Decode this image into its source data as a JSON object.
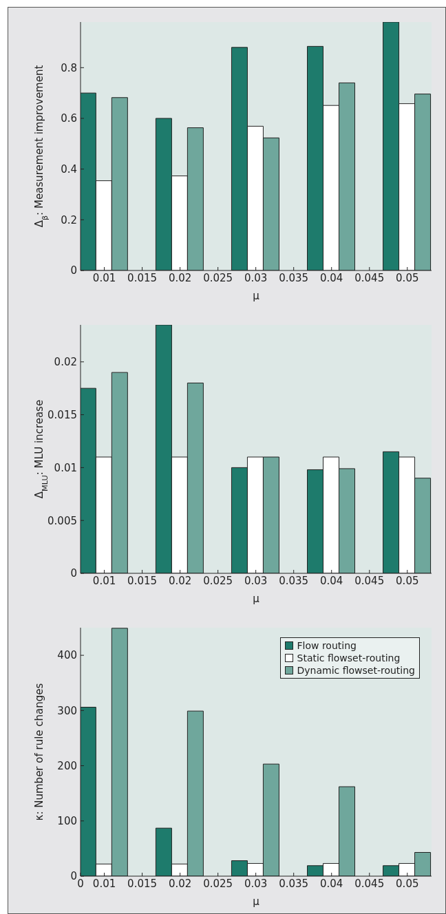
{
  "chart_data": [
    {
      "type": "bar",
      "x": [
        0.01,
        0.02,
        0.03,
        0.04,
        0.05
      ],
      "xlabel": "μ",
      "ylabel": "Δ$_{β}$: Measurement improvement",
      "xlim": [
        0.00686,
        0.0532
      ],
      "ylim": [
        0,
        0.98
      ],
      "xticks": [
        0.01,
        0.015,
        0.02,
        0.025,
        0.03,
        0.035,
        0.04,
        0.045,
        0.05
      ],
      "yticks": [
        0,
        0.2,
        0.4,
        0.6,
        0.8
      ],
      "series": [
        {
          "color": "#1e7b6c",
          "values": [
            0.7,
            0.6,
            0.88,
            0.884,
            0.98
          ]
        },
        {
          "color": "#ffffff",
          "values": [
            0.354,
            0.373,
            0.569,
            0.651,
            0.658
          ]
        },
        {
          "color": "#6fa79c",
          "values": [
            0.682,
            0.563,
            0.523,
            0.74,
            0.696
          ]
        }
      ]
    },
    {
      "type": "bar",
      "x": [
        0.01,
        0.02,
        0.03,
        0.04,
        0.05
      ],
      "xlabel": "μ",
      "ylabel": "Δ$_{MLU}$: MLU increase",
      "xlim": [
        0.00686,
        0.0532
      ],
      "ylim": [
        0,
        0.0235
      ],
      "xticks": [
        0.01,
        0.015,
        0.02,
        0.025,
        0.03,
        0.035,
        0.04,
        0.045,
        0.05
      ],
      "yticks": [
        0,
        0.005,
        0.01,
        0.015,
        0.02
      ],
      "series": [
        {
          "color": "#1e7b6c",
          "values": [
            0.0175,
            0.0235,
            0.01,
            0.0098,
            0.0115
          ]
        },
        {
          "color": "#ffffff",
          "values": [
            0.011,
            0.011,
            0.011,
            0.011,
            0.011
          ]
        },
        {
          "color": "#6fa79c",
          "values": [
            0.019,
            0.018,
            0.011,
            0.0099,
            0.009
          ]
        }
      ]
    },
    {
      "type": "bar",
      "x": [
        0.01,
        0.02,
        0.03,
        0.04,
        0.05
      ],
      "xlabel": "μ",
      "ylabel": "κ: Number of rule changes",
      "xlim": [
        0.00686,
        0.0532
      ],
      "ylim": [
        0,
        450
      ],
      "xticks": [
        {
          "value": 0.00686,
          "label": "0"
        },
        0.01,
        0.015,
        0.02,
        0.025,
        0.03,
        0.035,
        0.04,
        0.045,
        0.05
      ],
      "yticks": [
        0,
        100,
        200,
        300,
        400
      ],
      "legend": "top right",
      "series": [
        {
          "name": "Flow routing",
          "color": "#1e7b6c",
          "values": [
            306,
            87,
            28,
            19,
            19
          ]
        },
        {
          "name": "Static flowset-routing",
          "color": "#ffffff",
          "values": [
            22,
            22,
            23,
            23,
            23
          ]
        },
        {
          "name": "Dynamic flowset-routing",
          "color": "#6fa79c",
          "values": [
            449,
            299,
            203,
            162,
            43
          ]
        }
      ]
    }
  ]
}
